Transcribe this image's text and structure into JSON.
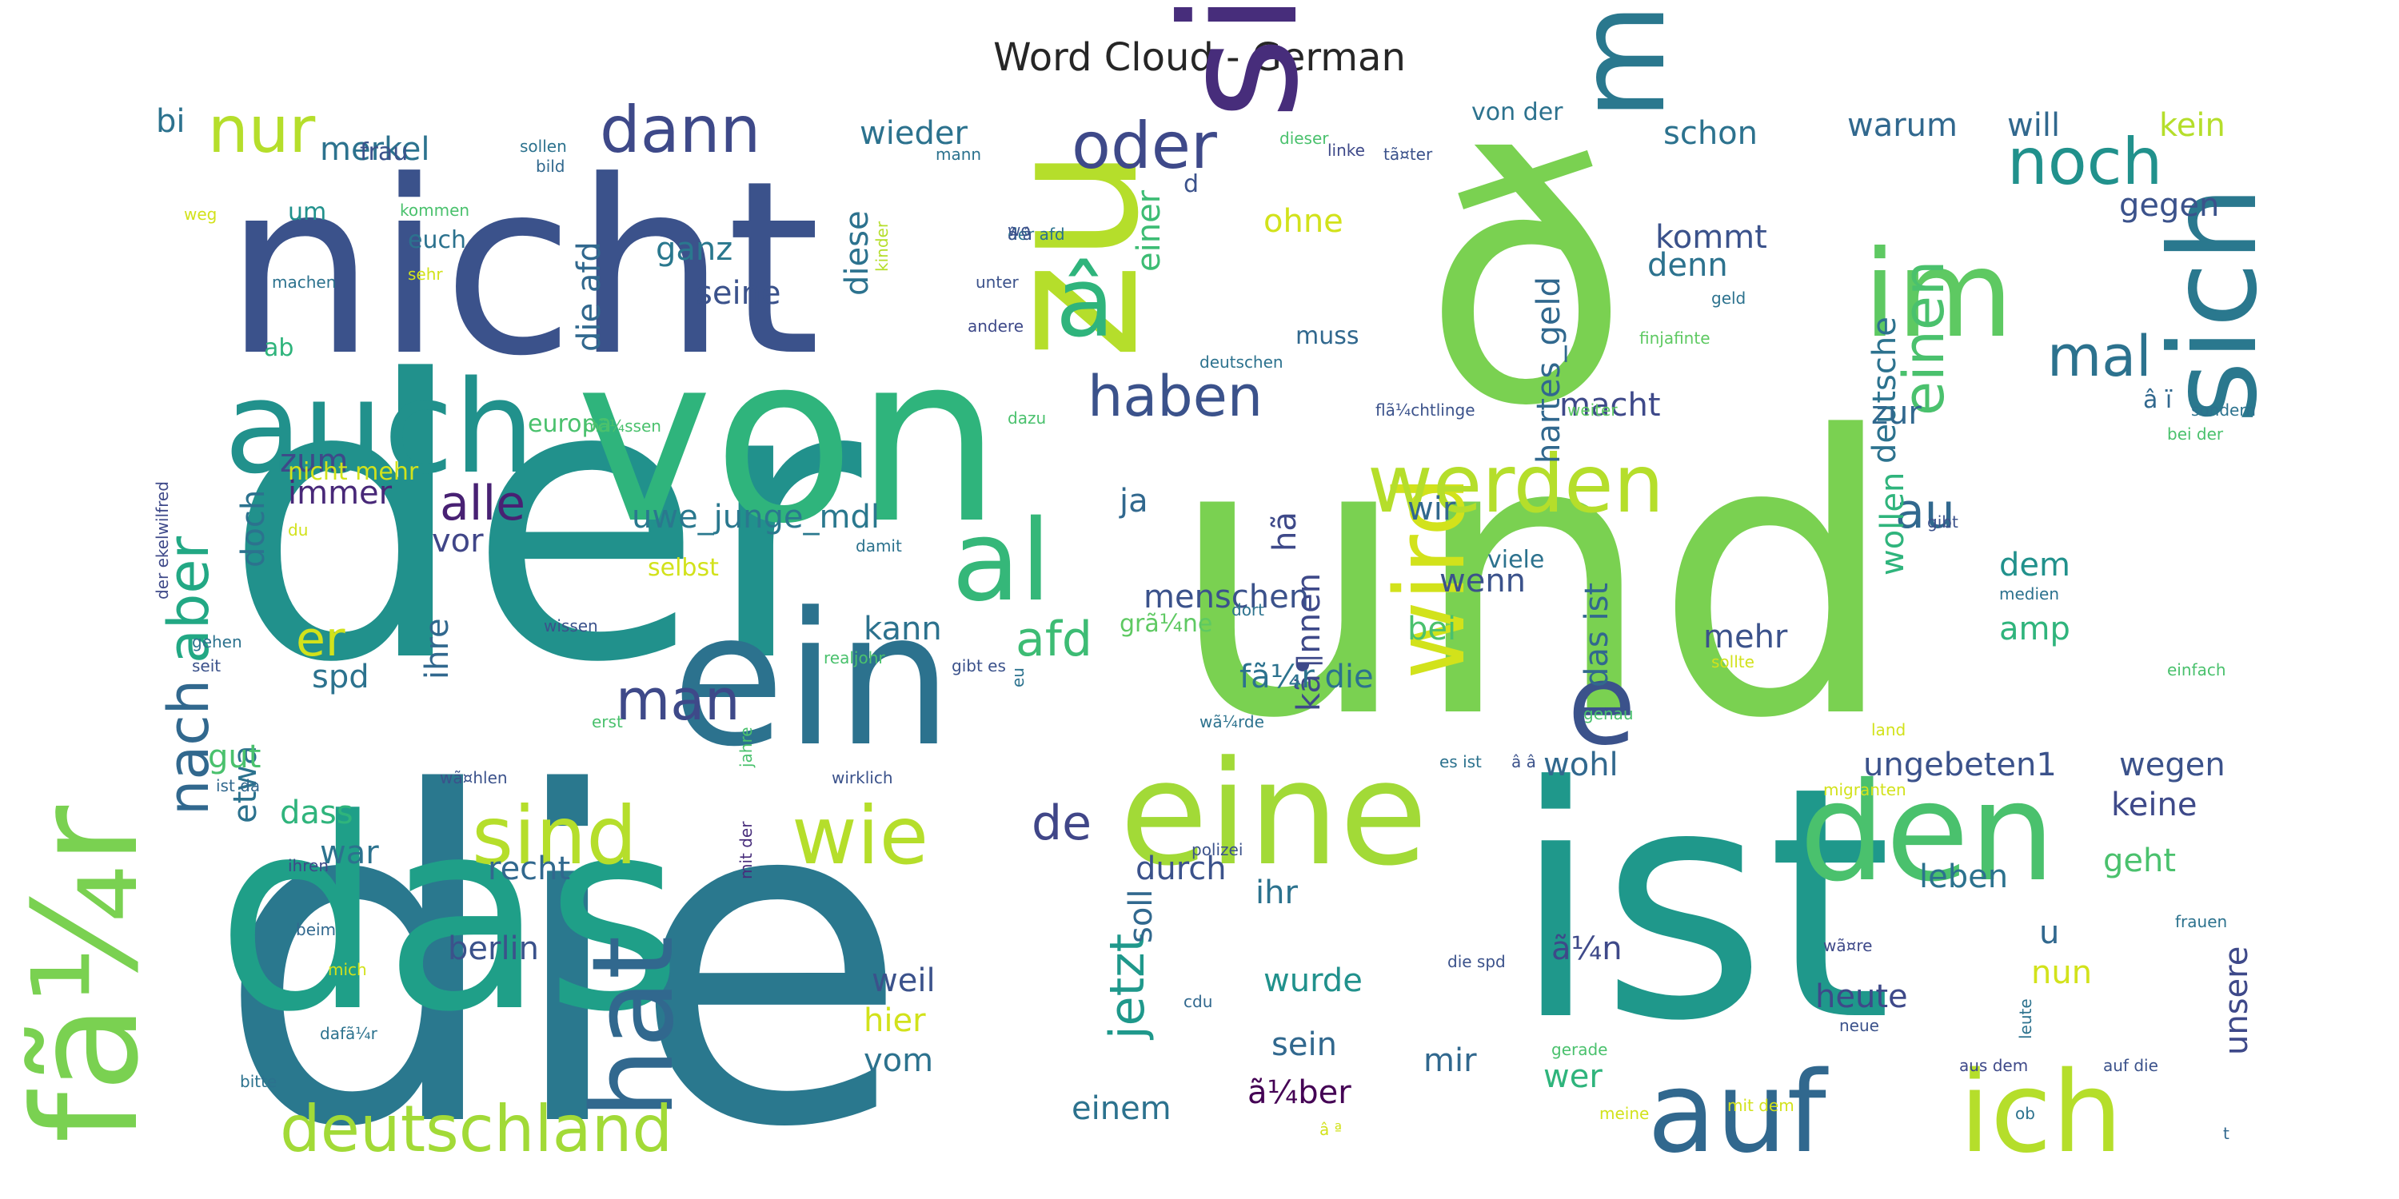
{
  "title": "Word Cloud - German",
  "words": [
    {
      "t": "der",
      "c": "#21918c"
    },
    {
      "t": "die",
      "c": "#2a788e"
    },
    {
      "t": "und",
      "c": "#7ad151"
    },
    {
      "t": "ist",
      "c": "#1f988b"
    },
    {
      "t": "nicht",
      "c": "#3b528b"
    },
    {
      "t": "von",
      "c": "#2fb47c"
    },
    {
      "t": "das",
      "c": "#1f9f88"
    },
    {
      "t": "zu",
      "c": "#b5de2b"
    },
    {
      "t": "ð",
      "c": "#7ad151"
    },
    {
      "t": "sie",
      "c": "#472d7b"
    },
    {
      "t": "ein",
      "c": "#2c728e"
    },
    {
      "t": "mit",
      "c": "#2a788e"
    },
    {
      "t": "eine",
      "c": "#a2da37"
    },
    {
      "t": "den",
      "c": "#4ac16d"
    },
    {
      "t": "sich",
      "c": "#2a788e"
    },
    {
      "t": "fã¼r",
      "c": "#7ad151"
    },
    {
      "t": "auch",
      "c": "#21918c"
    },
    {
      "t": "im",
      "c": "#5ec962"
    },
    {
      "t": "auf",
      "c": "#31688e"
    },
    {
      "t": "ich",
      "c": "#b5de2b"
    },
    {
      "t": "hat",
      "c": "#31688e"
    },
    {
      "t": "wird",
      "c": "#d2e21b"
    },
    {
      "t": "e",
      "c": "#3b528b"
    },
    {
      "t": "â",
      "c": "#2fb47c"
    },
    {
      "t": "al",
      "c": "#35b779"
    },
    {
      "t": "wie",
      "c": "#b5de2b"
    },
    {
      "t": "sind",
      "c": "#b5de2b"
    },
    {
      "t": "werden",
      "c": "#b5de2b"
    },
    {
      "t": "noch",
      "c": "#21918c"
    },
    {
      "t": "deutschland",
      "c": "#a2da37"
    },
    {
      "t": "oder",
      "c": "#3e4989"
    },
    {
      "t": "nur",
      "c": "#b5de2b"
    },
    {
      "t": "dann",
      "c": "#3e4989"
    },
    {
      "t": "aber",
      "c": "#22a884"
    },
    {
      "t": "nach",
      "c": "#31688e"
    },
    {
      "t": "man",
      "c": "#3e4989"
    },
    {
      "t": "haben",
      "c": "#3b528b"
    },
    {
      "t": "einen",
      "c": "#4ac16d"
    },
    {
      "t": "mal",
      "c": "#2c728e"
    },
    {
      "t": "jetzt",
      "c": "#1f988b"
    },
    {
      "t": "alle",
      "c": "#482173"
    },
    {
      "t": "afd",
      "c": "#3dbc74"
    },
    {
      "t": "au",
      "c": "#31688e"
    },
    {
      "t": "de",
      "c": "#404688"
    },
    {
      "t": "er",
      "c": "#d2e21b"
    },
    {
      "t": "uwe_junge_mdl",
      "c": "#2a788e"
    },
    {
      "t": "hartes_geld",
      "c": "#31688e"
    },
    {
      "t": "diese",
      "c": "#2c728e"
    },
    {
      "t": "menschen",
      "c": "#3b528b"
    },
    {
      "t": "die afd",
      "c": "#31688e"
    },
    {
      "t": "wieder",
      "c": "#2c728e"
    },
    {
      "t": "schon",
      "c": "#2c728e"
    },
    {
      "t": "warum",
      "c": "#31688e"
    },
    {
      "t": "will",
      "c": "#31688e"
    },
    {
      "t": "kein",
      "c": "#b5de2b"
    },
    {
      "t": "merkel",
      "c": "#2c728e"
    },
    {
      "t": "einer",
      "c": "#3dbc74"
    },
    {
      "t": "ohne",
      "c": "#d2e21b"
    },
    {
      "t": "gegen",
      "c": "#3b528b"
    },
    {
      "t": "deutsche",
      "c": "#2c728e"
    },
    {
      "t": "kommt",
      "c": "#3b528b"
    },
    {
      "t": "denn",
      "c": "#2c728e"
    },
    {
      "t": "ganz",
      "c": "#2a788e"
    },
    {
      "t": "seine",
      "c": "#3b528b"
    },
    {
      "t": "zum",
      "c": "#3e4989"
    },
    {
      "t": "immer",
      "c": "#482878"
    },
    {
      "t": "doch",
      "c": "#2c728e"
    },
    {
      "t": "vor",
      "c": "#404688"
    },
    {
      "t": "ja",
      "c": "#31688e"
    },
    {
      "t": "hã",
      "c": "#3e4989"
    },
    {
      "t": "wir",
      "c": "#31688e"
    },
    {
      "t": "wenn",
      "c": "#3b528b"
    },
    {
      "t": "wollen",
      "c": "#2fb47c"
    },
    {
      "t": "zur",
      "c": "#31688e"
    },
    {
      "t": "macht",
      "c": "#3e4989"
    },
    {
      "t": "dem",
      "c": "#21918c"
    },
    {
      "t": "amp",
      "c": "#2fb47c"
    },
    {
      "t": "mehr",
      "c": "#3b528b"
    },
    {
      "t": "das ist",
      "c": "#31688e"
    },
    {
      "t": "kã¶nnen",
      "c": "#3e4989"
    },
    {
      "t": "bei",
      "c": "#4ac16d"
    },
    {
      "t": "kann",
      "c": "#2c728e"
    },
    {
      "t": "ihre",
      "c": "#31688e"
    },
    {
      "t": "spd",
      "c": "#2c728e"
    },
    {
      "t": "etwa",
      "c": "#2c728e"
    },
    {
      "t": "gut",
      "c": "#4ac16d"
    },
    {
      "t": "dass",
      "c": "#2fb47c"
    },
    {
      "t": "war",
      "c": "#2c728e"
    },
    {
      "t": "recht",
      "c": "#31688e"
    },
    {
      "t": "berlin",
      "c": "#3b528b"
    },
    {
      "t": "durch",
      "c": "#3b528b"
    },
    {
      "t": "ihr",
      "c": "#2c728e"
    },
    {
      "t": "soll",
      "c": "#31688e"
    },
    {
      "t": "wurde",
      "c": "#21918c"
    },
    {
      "t": "weil",
      "c": "#3b528b"
    },
    {
      "t": "hier",
      "c": "#d2e21b"
    },
    {
      "t": "vom",
      "c": "#2c728e"
    },
    {
      "t": "sein",
      "c": "#31688e"
    },
    {
      "t": "einem",
      "c": "#2c728e"
    },
    {
      "t": "ã¼ber",
      "c": "#440154"
    },
    {
      "t": "mir",
      "c": "#31688e"
    },
    {
      "t": "wer",
      "c": "#2fb47c"
    },
    {
      "t": "heute",
      "c": "#3e4989"
    },
    {
      "t": "nun",
      "c": "#d2e21b"
    },
    {
      "t": "u",
      "c": "#31688e"
    },
    {
      "t": "ã¼n",
      "c": "#3e4989"
    },
    {
      "t": "leben",
      "c": "#2c728e"
    },
    {
      "t": "geht",
      "c": "#4ac16d"
    },
    {
      "t": "keine",
      "c": "#3e4989"
    },
    {
      "t": "wegen",
      "c": "#3b528b"
    },
    {
      "t": "ungebeten1",
      "c": "#3b528b"
    },
    {
      "t": "wohl",
      "c": "#31688e"
    },
    {
      "t": "unsere",
      "c": "#3e4989"
    },
    {
      "t": "fã¼r die",
      "c": "#2c728e"
    },
    {
      "t": "â ï",
      "c": "#31688e"
    },
    {
      "t": "europa",
      "c": "#4ac16d"
    },
    {
      "t": "euch",
      "c": "#2c728e"
    },
    {
      "t": "frau",
      "c": "#3b528b"
    },
    {
      "t": "um",
      "c": "#21918c"
    },
    {
      "t": "bi",
      "c": "#2c728e"
    },
    {
      "t": "ab",
      "c": "#2fb47c"
    },
    {
      "t": "nicht mehr",
      "c": "#d2e21b"
    },
    {
      "t": "muss",
      "c": "#31688e"
    },
    {
      "t": "d",
      "c": "#3b528b"
    },
    {
      "t": "von der",
      "c": "#2c728e"
    },
    {
      "t": "selbst",
      "c": "#d2e21b"
    },
    {
      "t": "viele",
      "c": "#2c728e"
    },
    {
      "t": "grã¼ne",
      "c": "#5ec962"
    },
    {
      "t": "du",
      "c": "#d2e21b"
    },
    {
      "t": "wissen",
      "c": "#3b528b"
    },
    {
      "t": "mit der",
      "c": "#472d7b"
    },
    {
      "t": "realjohr",
      "c": "#4ac16d"
    },
    {
      "t": "gibt es",
      "c": "#3b528b"
    },
    {
      "t": "eu",
      "c": "#2c728e"
    },
    {
      "t": "wã¤hlen",
      "c": "#3b528b"
    },
    {
      "t": "ist da",
      "c": "#31688e"
    },
    {
      "t": "ihren",
      "c": "#3e4989"
    },
    {
      "t": "wirklich",
      "c": "#3b528b"
    },
    {
      "t": "jahre",
      "c": "#4ac16d"
    },
    {
      "t": "beim",
      "c": "#31688e"
    },
    {
      "t": "linke",
      "c": "#3e4989"
    },
    {
      "t": "sollen",
      "c": "#2c728e"
    },
    {
      "t": "bild",
      "c": "#31688e"
    },
    {
      "t": "kommen",
      "c": "#4ac16d"
    },
    {
      "t": "mann",
      "c": "#2c728e"
    },
    {
      "t": "dieser",
      "c": "#4ac16d"
    },
    {
      "t": "tã¤ter",
      "c": "#3b528b"
    },
    {
      "t": "der afd",
      "c": "#2c728e"
    },
    {
      "t": "weg",
      "c": "#d2e21b"
    },
    {
      "t": "wo",
      "c": "#3b528b"
    },
    {
      "t": "â â",
      "c": "#3b528b"
    },
    {
      "t": "machen",
      "c": "#2c728e"
    },
    {
      "t": "sehr",
      "c": "#d2e21b"
    },
    {
      "t": "unter",
      "c": "#3b528b"
    },
    {
      "t": "kinder",
      "c": "#b5de2b"
    },
    {
      "t": "andere",
      "c": "#3e4989"
    },
    {
      "t": "geld",
      "c": "#2c728e"
    },
    {
      "t": "finjafinte",
      "c": "#5ec962"
    },
    {
      "t": "deutschen",
      "c": "#2c728e"
    },
    {
      "t": "flã¼chtlinge",
      "c": "#3b528b"
    },
    {
      "t": "weiter",
      "c": "#5ec962"
    },
    {
      "t": "mã¼ssen",
      "c": "#4ac16d"
    },
    {
      "t": "dazu",
      "c": "#4ac16d"
    },
    {
      "t": "der ekelwilfred",
      "c": "#3e4989"
    },
    {
      "t": "damit",
      "c": "#2c728e"
    },
    {
      "t": "gibt",
      "c": "#3b528b"
    },
    {
      "t": "sondern",
      "c": "#2c728e"
    },
    {
      "t": "bei der",
      "c": "#4ac16d"
    },
    {
      "t": "gehen",
      "c": "#2c728e"
    },
    {
      "t": "seit",
      "c": "#3b528b"
    },
    {
      "t": "erst",
      "c": "#4ac16d"
    },
    {
      "t": "dort",
      "c": "#2c728e"
    },
    {
      "t": "wã¼rde",
      "c": "#2c728e"
    },
    {
      "t": "es ist",
      "c": "#2c728e"
    },
    {
      "t": "genau",
      "c": "#4ac16d"
    },
    {
      "t": "land",
      "c": "#d2e21b"
    },
    {
      "t": "einfach",
      "c": "#4ac16d"
    },
    {
      "t": "medien",
      "c": "#2c728e"
    },
    {
      "t": "sollte",
      "c": "#d2e21b"
    },
    {
      "t": "migranten",
      "c": "#d2e21b"
    },
    {
      "t": "polizei",
      "c": "#3b528b"
    },
    {
      "t": "wã¤re",
      "c": "#3e4989"
    },
    {
      "t": "neue",
      "c": "#3b528b"
    },
    {
      "t": "frauen",
      "c": "#2c728e"
    },
    {
      "t": "mich",
      "c": "#d2e21b"
    },
    {
      "t": "dafã¼r",
      "c": "#2c728e"
    },
    {
      "t": "die spd",
      "c": "#3b528b"
    },
    {
      "t": "cdu",
      "c": "#31688e"
    },
    {
      "t": "leute",
      "c": "#2c728e"
    },
    {
      "t": "gerade",
      "c": "#4ac16d"
    },
    {
      "t": "aus dem",
      "c": "#3e4989"
    },
    {
      "t": "auf die",
      "c": "#3b528b"
    },
    {
      "t": "mit dem",
      "c": "#d2e21b"
    },
    {
      "t": "ob",
      "c": "#2c728e"
    },
    {
      "t": "bitte",
      "c": "#2c728e"
    },
    {
      "t": "meine",
      "c": "#d2e21b"
    },
    {
      "t": "t",
      "c": "#31688e"
    },
    {
      "t": "â ª",
      "c": "#d2e21b"
    },
    {
      "t": "â â",
      "c": "#3b528b"
    }
  ]
}
